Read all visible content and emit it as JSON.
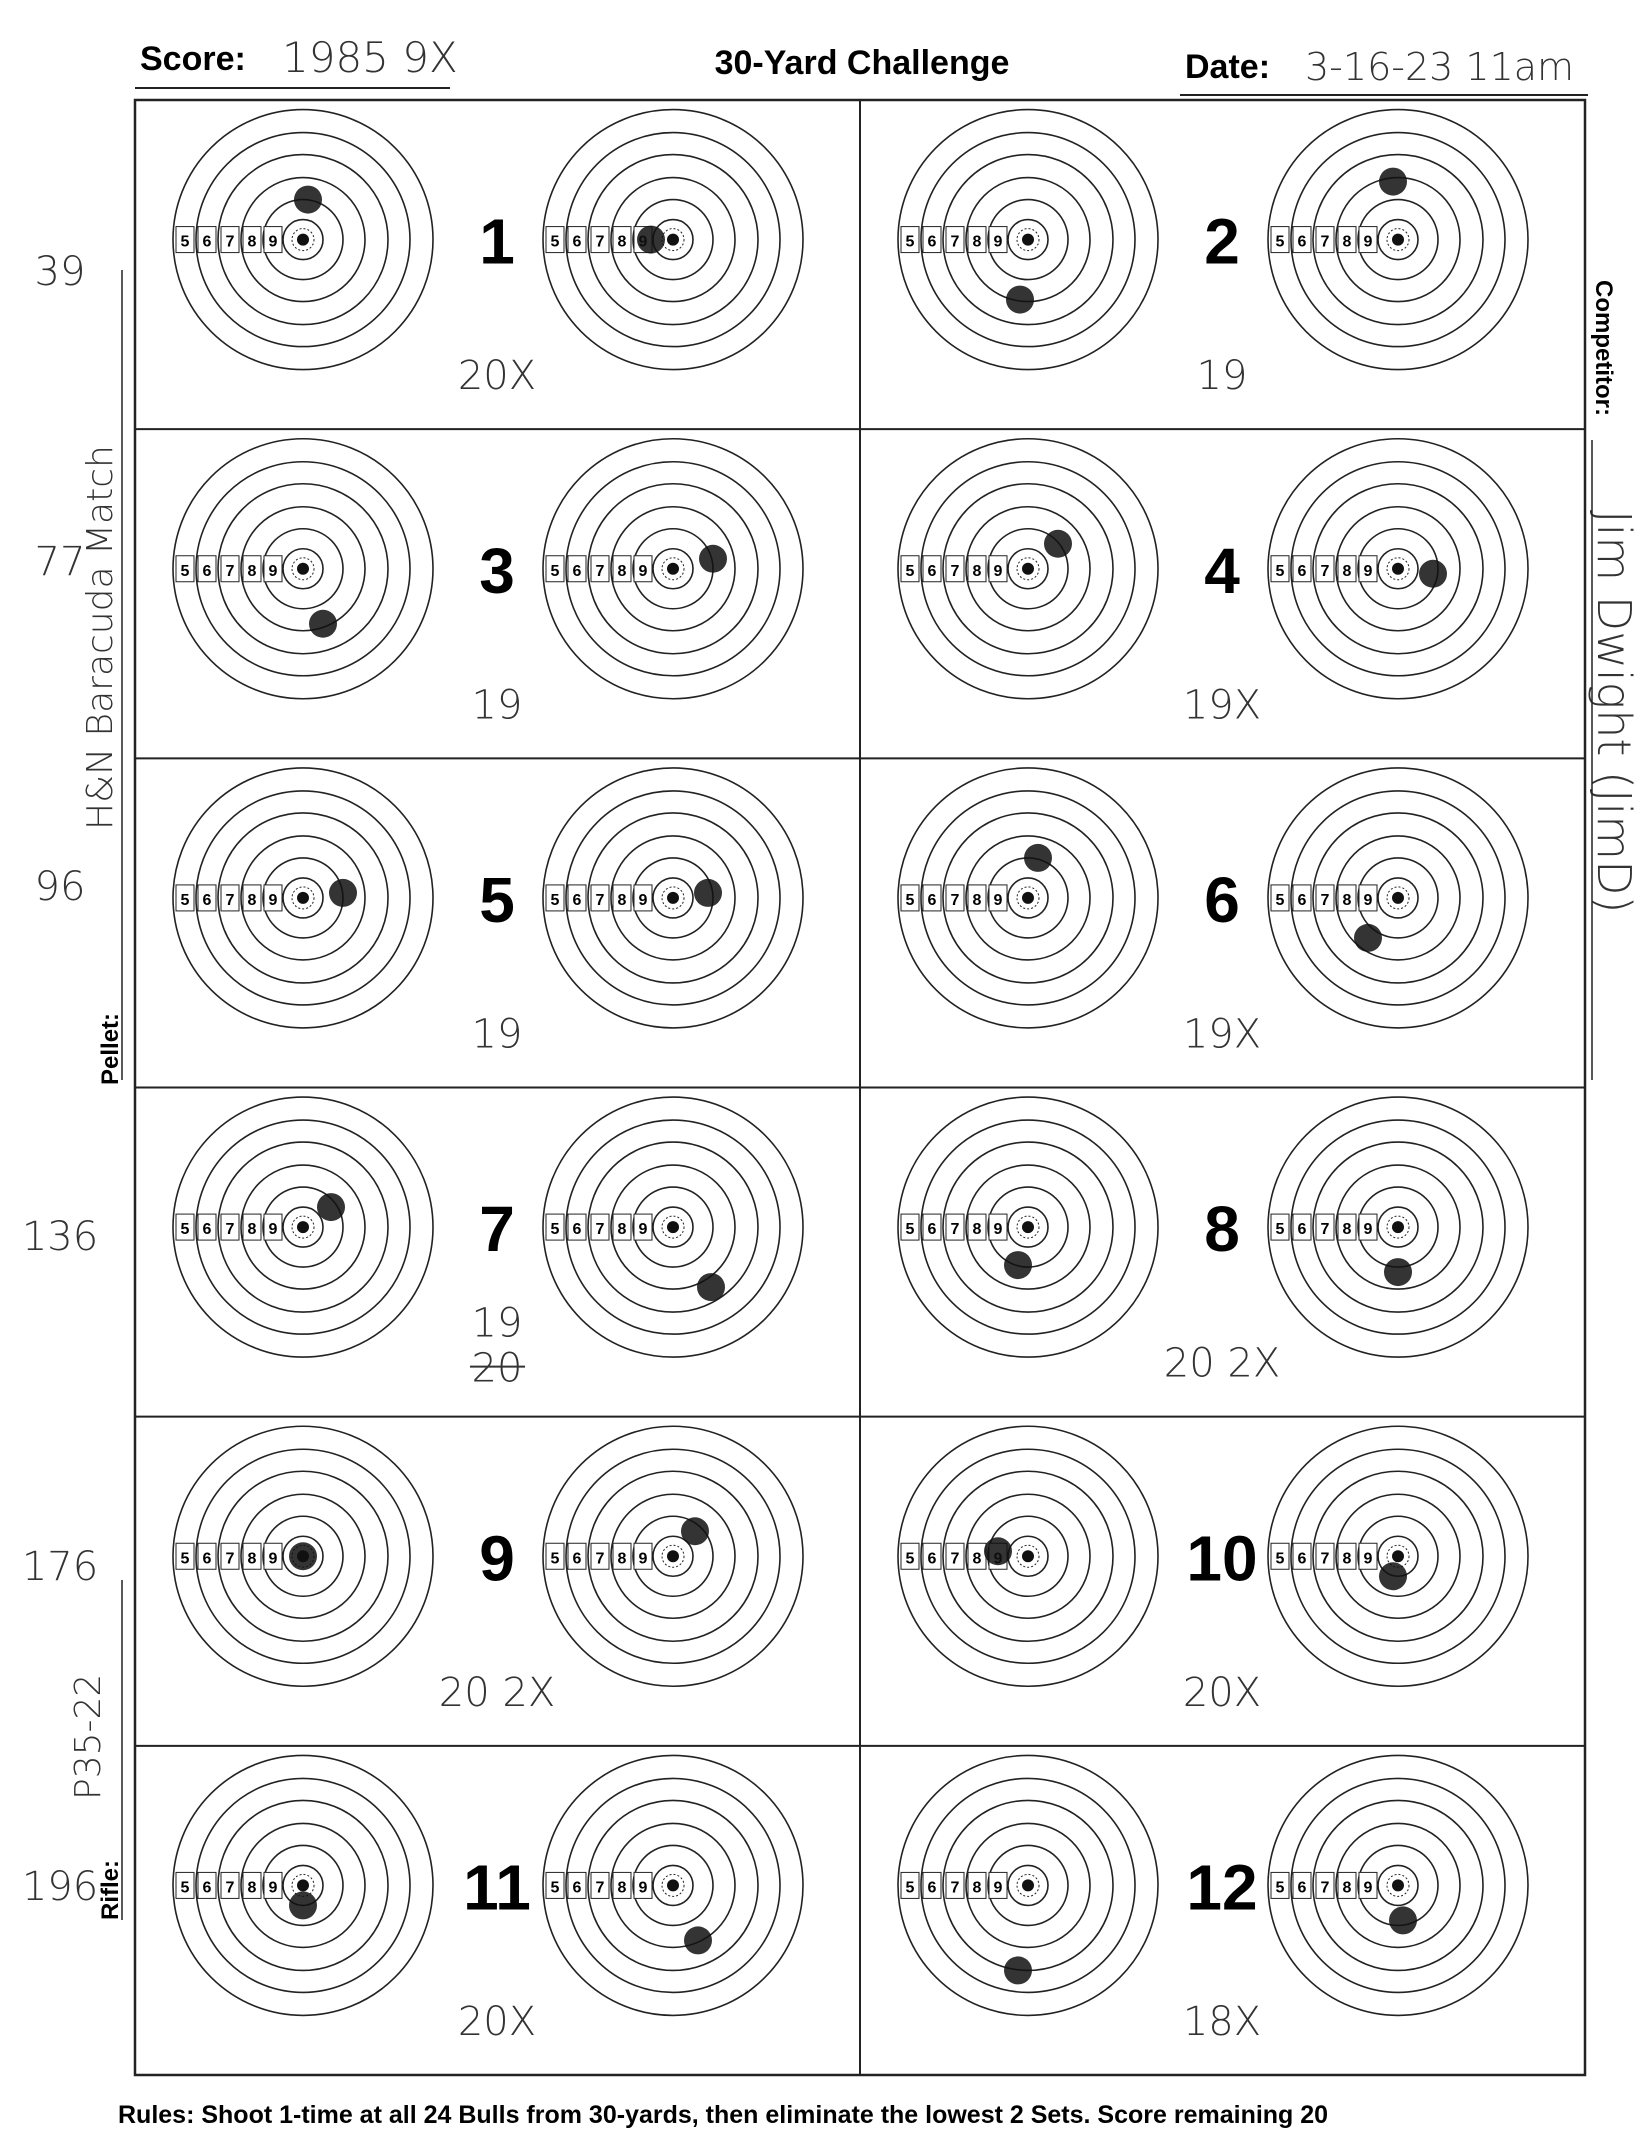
{
  "header": {
    "score_label": "Score:",
    "score": "1985 9X",
    "title": "30-Yard Challenge",
    "date_label": "Date:",
    "date": "3-16-23 11am"
  },
  "side": {
    "competitor_label": "Competitor:",
    "competitor": "Jim Dwight (JimD)",
    "pellet_label": "Pellet:",
    "pellet": "H&N Baracuda Match",
    "rifle_label": "Rifle:",
    "rifle": "P35-22"
  },
  "running_totals": [
    "39",
    "77",
    "96",
    "136",
    "176",
    "196"
  ],
  "ring_labels": [
    "5",
    "6",
    "7",
    "8",
    "9"
  ],
  "sets": [
    {
      "number": "1",
      "score": "20X"
    },
    {
      "number": "2",
      "score": "19"
    },
    {
      "number": "3",
      "score": "19"
    },
    {
      "number": "4",
      "score": "19X"
    },
    {
      "number": "5",
      "score": "19"
    },
    {
      "number": "6",
      "score": "19X"
    },
    {
      "number": "7",
      "score": "19",
      "struck": "20"
    },
    {
      "number": "8",
      "score": "20 2X"
    },
    {
      "number": "9",
      "score": "20 2X"
    },
    {
      "number": "10",
      "score": "20X"
    },
    {
      "number": "11",
      "score": "20X"
    },
    {
      "number": "12",
      "score": "18X"
    }
  ],
  "rules": "Rules: Shoot 1-time at all 24 Bulls from 30-yards, then eliminate the lowest 2 Sets. Score remaining 20"
}
